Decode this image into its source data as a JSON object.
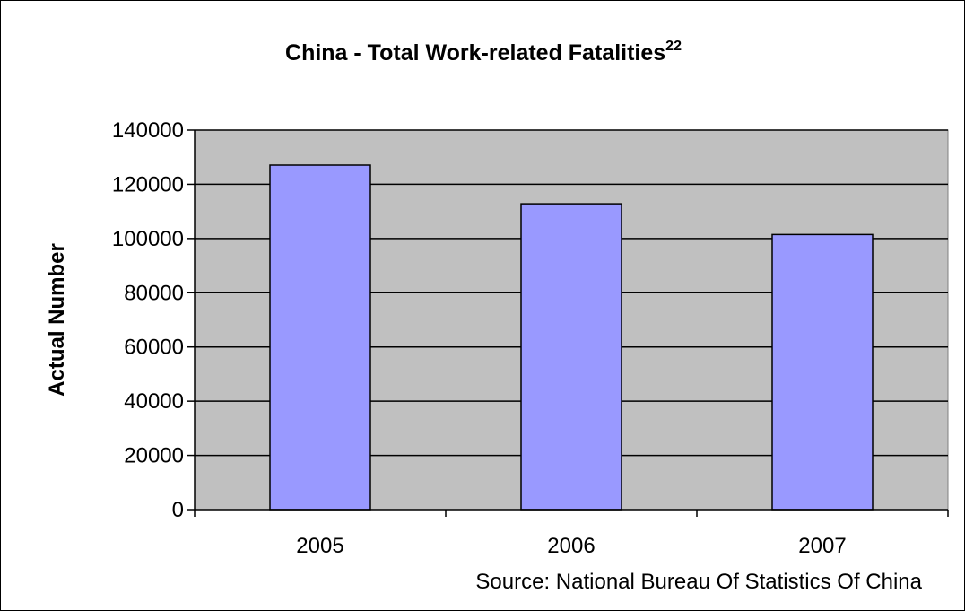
{
  "chart_data": {
    "type": "bar",
    "title": "China - Total Work-related Fatalities",
    "title_superscript": "22",
    "xlabel": "",
    "ylabel": "Actual Number",
    "categories": [
      "2005",
      "2006",
      "2007"
    ],
    "values": [
      127089,
      112822,
      101480
    ],
    "ylim": [
      0,
      140000
    ],
    "yticks": [
      0,
      20000,
      40000,
      60000,
      80000,
      100000,
      120000,
      140000
    ],
    "ytick_labels": [
      "0",
      "20000",
      "40000",
      "60000",
      "80000",
      "100000",
      "120000",
      "140000"
    ],
    "grid": true,
    "legend": "none",
    "source_note": "Source: National Bureau Of Statistics Of China",
    "colors": {
      "bar_fill": "#9999ff",
      "bar_stroke": "#000000",
      "plot_background": "#c0c0c0",
      "gridline": "#000000"
    }
  }
}
